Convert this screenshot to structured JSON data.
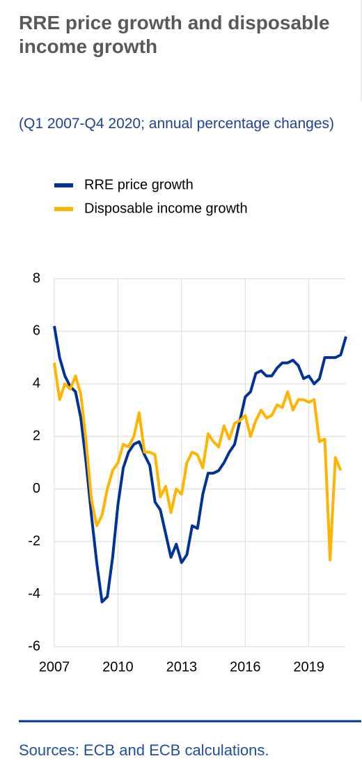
{
  "chart_data": {
    "type": "line",
    "title": "RRE price growth and disposable income growth",
    "subtitle": "(Q1 2007-Q4 2020; annual percentage changes)",
    "categories": [
      "2007",
      null,
      null,
      null,
      null,
      null,
      null,
      null,
      null,
      null,
      null,
      null,
      "2010",
      null,
      null,
      null,
      null,
      null,
      null,
      null,
      null,
      null,
      null,
      null,
      "2013",
      null,
      null,
      null,
      null,
      null,
      null,
      null,
      null,
      null,
      null,
      null,
      "2016",
      null,
      null,
      null,
      null,
      null,
      null,
      null,
      null,
      null,
      null,
      null,
      "2019",
      null,
      null,
      null,
      null,
      null,
      null,
      null
    ],
    "series": [
      {
        "name": "RRE price growth",
        "color": "#003299",
        "values": [
          6.2,
          5.0,
          4.3,
          3.9,
          3.7,
          2.7,
          1.0,
          -1.0,
          -2.8,
          -4.3,
          -4.1,
          -2.6,
          -0.6,
          0.8,
          1.4,
          1.7,
          1.8,
          1.3,
          0.9,
          -0.5,
          -0.8,
          -1.7,
          -2.6,
          -2.1,
          -2.8,
          -2.5,
          -1.4,
          -1.5,
          -0.2,
          0.6,
          0.6,
          0.7,
          1.0,
          1.4,
          1.7,
          2.6,
          3.5,
          3.7,
          4.4,
          4.5,
          4.3,
          4.3,
          4.6,
          4.8,
          4.8,
          4.9,
          4.7,
          4.2,
          4.3,
          4.0,
          4.2,
          5.0,
          5.0,
          5.0,
          5.1,
          5.8
        ]
      },
      {
        "name": "Disposable income growth",
        "color": "#ffb400",
        "values": [
          4.8,
          3.4,
          4.0,
          3.8,
          4.3,
          3.6,
          1.8,
          -0.4,
          -1.4,
          -1.0,
          0.0,
          0.7,
          1.0,
          1.7,
          1.6,
          2.0,
          2.9,
          1.4,
          1.4,
          1.3,
          -0.3,
          0.1,
          -0.9,
          0.0,
          -0.2,
          1.0,
          1.4,
          1.3,
          0.8,
          2.1,
          1.8,
          1.6,
          2.4,
          1.9,
          2.5,
          2.6,
          2.8,
          2.0,
          2.6,
          3.0,
          2.7,
          2.8,
          3.2,
          3.1,
          3.7,
          3.0,
          3.4,
          3.4,
          3.3,
          3.4,
          1.8,
          1.9,
          -2.7,
          1.2,
          0.7,
          null
        ]
      }
    ],
    "ylim": [
      -6,
      8
    ],
    "yticks": [
      -6,
      -4,
      -2,
      0,
      2,
      4,
      6,
      8
    ],
    "grid": true,
    "source": "Sources: ECB and ECB calculations."
  }
}
